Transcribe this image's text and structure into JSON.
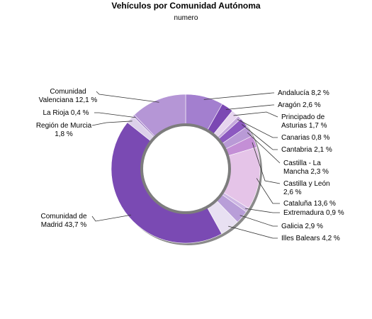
{
  "chart_data": {
    "type": "pie",
    "title": "Vehículos por Comunidad Autónoma",
    "subtitle": "numero",
    "donut": true,
    "slices": [
      {
        "name": "Andalucía",
        "value": 8.2,
        "labelLines": [
          "Andalucía 8,2 %"
        ],
        "color": "#a37fcf"
      },
      {
        "name": "Aragón",
        "value": 2.6,
        "labelLines": [
          "Aragón 2,6 %"
        ],
        "color": "#7b48b3"
      },
      {
        "name": "Principado de Asturias",
        "value": 1.7,
        "labelLines": [
          "Principado de",
          "Asturias 1,7 %"
        ],
        "color": "#e6d5ee"
      },
      {
        "name": "Canarias",
        "value": 0.8,
        "labelLines": [
          "Canarias 0,8 %"
        ],
        "color": "#c5a9dc"
      },
      {
        "name": "Cantabria",
        "value": 2.1,
        "labelLines": [
          "Cantabria 2,1 %"
        ],
        "color": "#8c59c0"
      },
      {
        "name": "Castilla - La Mancha",
        "value": 2.3,
        "labelLines": [
          "Castilla - La",
          "Mancha 2,3 %"
        ],
        "color": "#b99ad6"
      },
      {
        "name": "Castilla y León",
        "value": 2.6,
        "labelLines": [
          "Castilla y León",
          "2,6 %"
        ],
        "color": "#c48fd6"
      },
      {
        "name": "Cataluña",
        "value": 13.6,
        "labelLines": [
          "Cataluña 13,6 %"
        ],
        "color": "#e5c4e8"
      },
      {
        "name": "Extremadura",
        "value": 0.9,
        "labelLines": [
          "Extremadura 0,9 %"
        ],
        "color": "#cdb7e3"
      },
      {
        "name": "Galicia",
        "value": 2.9,
        "labelLines": [
          "Galicia 2,9 %"
        ],
        "color": "#b89ed8"
      },
      {
        "name": "Illes Balears",
        "value": 4.2,
        "labelLines": [
          "Illes Balears 4,2 %"
        ],
        "color": "#e8e0f2"
      },
      {
        "name": "Comunidad de Madrid",
        "value": 43.7,
        "labelLines": [
          "Comunidad de",
          "Madrid 43,7 %"
        ],
        "color": "#7a4ab3"
      },
      {
        "name": "Región de Murcia",
        "value": 1.8,
        "labelLines": [
          "Región de Murcia",
          "1,8 %"
        ],
        "color": "#dcd0ea"
      },
      {
        "name": "La Rioja",
        "value": 0.4,
        "labelLines": [
          "La Rioja 0,4 %"
        ],
        "color": "#a888cc"
      },
      {
        "name": "Comunidad Valenciana",
        "value": 12.1,
        "labelLines": [
          "Comunidad",
          "Valenciana 12,1 %"
        ],
        "color": "#b596d6"
      }
    ]
  }
}
